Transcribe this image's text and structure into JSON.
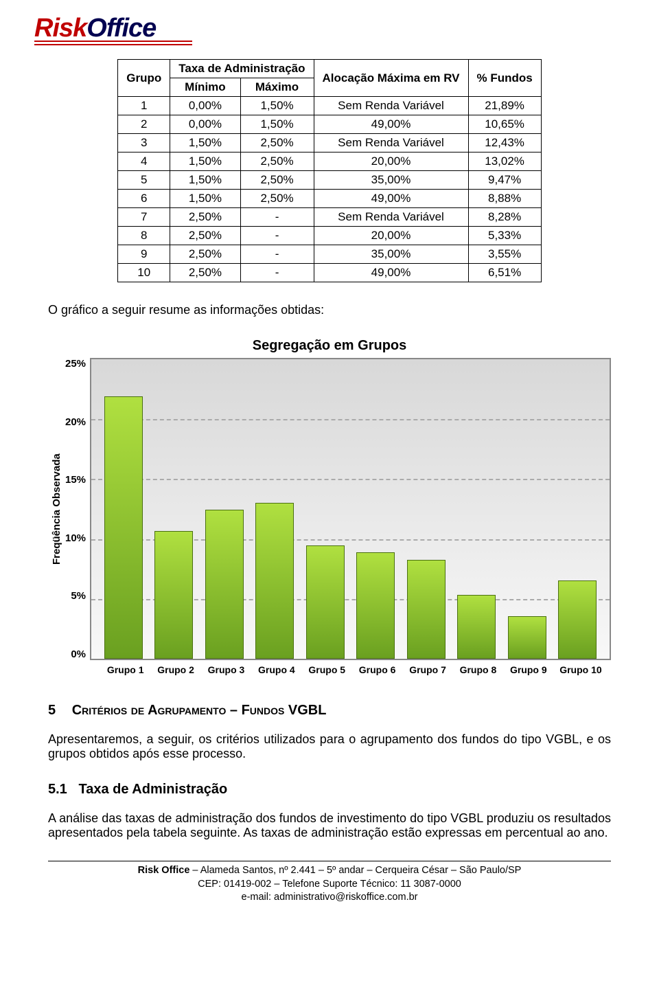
{
  "logo": {
    "part1": "Risk",
    "part2": "Office"
  },
  "table": {
    "headers": {
      "grupo": "Grupo",
      "taxa": "Taxa de Administração",
      "minimo": "Mínimo",
      "maximo": "Máximo",
      "alocacao": "Alocação Máxima em RV",
      "fundos": "% Fundos"
    },
    "rows": [
      {
        "grupo": "1",
        "min": "0,00%",
        "max": "1,50%",
        "aloc": "Sem Renda Variável",
        "fund": "21,89%"
      },
      {
        "grupo": "2",
        "min": "0,00%",
        "max": "1,50%",
        "aloc": "49,00%",
        "fund": "10,65%"
      },
      {
        "grupo": "3",
        "min": "1,50%",
        "max": "2,50%",
        "aloc": "Sem Renda Variável",
        "fund": "12,43%"
      },
      {
        "grupo": "4",
        "min": "1,50%",
        "max": "2,50%",
        "aloc": "20,00%",
        "fund": "13,02%"
      },
      {
        "grupo": "5",
        "min": "1,50%",
        "max": "2,50%",
        "aloc": "35,00%",
        "fund": "9,47%"
      },
      {
        "grupo": "6",
        "min": "1,50%",
        "max": "2,50%",
        "aloc": "49,00%",
        "fund": "8,88%"
      },
      {
        "grupo": "7",
        "min": "2,50%",
        "max": "-",
        "aloc": "Sem Renda Variável",
        "fund": "8,28%"
      },
      {
        "grupo": "8",
        "min": "2,50%",
        "max": "-",
        "aloc": "20,00%",
        "fund": "5,33%"
      },
      {
        "grupo": "9",
        "min": "2,50%",
        "max": "-",
        "aloc": "35,00%",
        "fund": "3,55%"
      },
      {
        "grupo": "10",
        "min": "2,50%",
        "max": "-",
        "aloc": "49,00%",
        "fund": "6,51%"
      }
    ]
  },
  "intro_text": "O gráfico a seguir resume as informações obtidas:",
  "chart": {
    "type": "bar",
    "title": "Segregação em Grupos",
    "y_label": "Freqüência Observada",
    "y_ticks": [
      "25%",
      "20%",
      "15%",
      "10%",
      "5%",
      "0%"
    ],
    "y_max": 25,
    "grid_positions_pct": [
      20,
      40,
      60,
      80
    ],
    "categories": [
      "Grupo 1",
      "Grupo 2",
      "Grupo 3",
      "Grupo 4",
      "Grupo 5",
      "Grupo 6",
      "Grupo 7",
      "Grupo 8",
      "Grupo 9",
      "Grupo 10"
    ],
    "values": [
      21.89,
      10.65,
      12.43,
      13.02,
      9.47,
      8.88,
      8.28,
      5.33,
      3.55,
      6.51
    ],
    "bar_fill_top": "#b0e040",
    "bar_fill_bottom": "#6aa020",
    "bar_border": "#4a7010",
    "plot_bg_top": "#d8d8d8",
    "plot_bg_bottom": "#f8f8f8",
    "grid_color": "#aaaaaa",
    "title_fontsize": 20,
    "label_fontsize": 15
  },
  "section5": {
    "num": "5",
    "title": "Critérios de Agrupamento – Fundos VGBL",
    "para": "Apresentaremos, a seguir, os critérios utilizados para o agrupamento dos fundos do tipo VGBL, e os grupos obtidos após esse processo."
  },
  "section51": {
    "num": "5.1",
    "title": "Taxa de Administração",
    "para": "A análise das taxas de administração dos fundos de investimento do tipo VGBL produziu os resultados apresentados pela tabela seguinte. As taxas de administração estão expressas em percentual ao ano."
  },
  "footer": {
    "line1": "Risk Office – Alameda Santos, nº 2.441 – 5º andar – Cerqueira César – São Paulo/SP",
    "line2": "CEP: 01419-002 – Telefone Suporte Técnico: 11 3087-0000",
    "line3": "e-mail: administrativo@riskoffice.com.br"
  }
}
